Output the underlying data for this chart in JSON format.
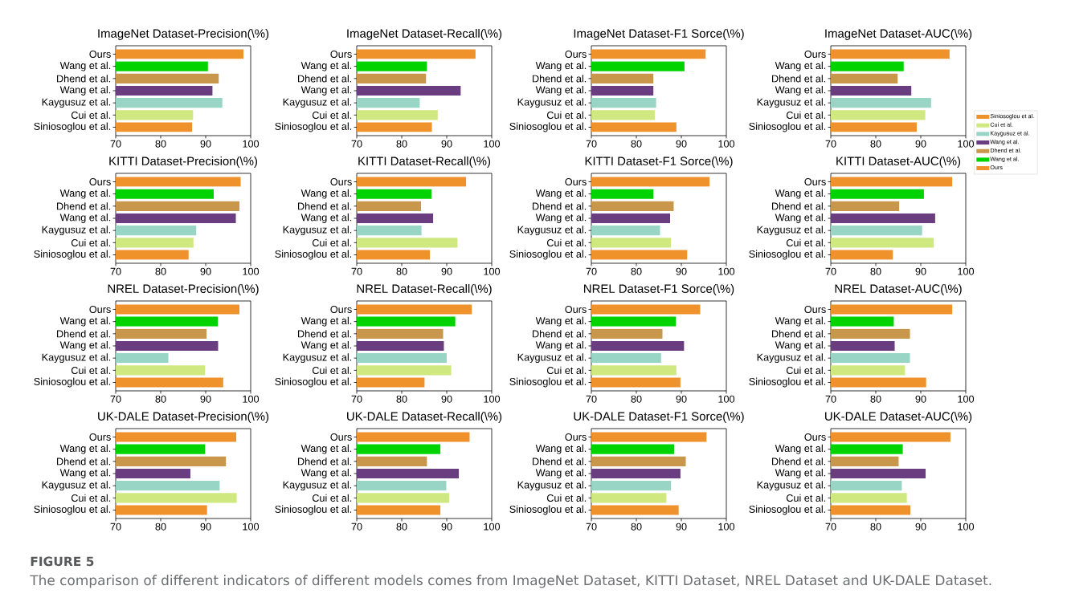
{
  "chart_data": [
    {
      "type": "bar",
      "orientation": "horizontal",
      "title": "ImageNet Dataset-Precision(\\%)",
      "categories": [
        "Ours",
        "Wang et al.",
        "Dhend et al.",
        "Wang et al.",
        "Kaygusuz et al.",
        "Cui et al.",
        "Siniosoglou et al."
      ],
      "values": [
        98.4,
        90.5,
        92.9,
        91.5,
        93.7,
        87.2,
        87.0
      ],
      "colors": [
        "#f0922b",
        "#00d300",
        "#c8974c",
        "#6a3d80",
        "#98d5c5",
        "#cfe880",
        "#f0922b"
      ],
      "xlim": [
        70,
        100
      ],
      "xticks": [
        70,
        80,
        90,
        100
      ]
    },
    {
      "type": "bar",
      "orientation": "horizontal",
      "title": "ImageNet Dataset-Recall(\\%)",
      "categories": [
        "Ours",
        "Wang et al.",
        "Dhend et al.",
        "Wang et al.",
        "Kaygusuz et al.",
        "Cui et al.",
        "Siniosoglou et al."
      ],
      "values": [
        96.4,
        85.6,
        85.4,
        93.1,
        84.0,
        88.0,
        86.7
      ],
      "colors": [
        "#f0922b",
        "#00d300",
        "#c8974c",
        "#6a3d80",
        "#98d5c5",
        "#cfe880",
        "#f0922b"
      ],
      "xlim": [
        70,
        100
      ],
      "xticks": [
        70,
        80,
        90,
        100
      ]
    },
    {
      "type": "bar",
      "orientation": "horizontal",
      "title": "ImageNet Dataset-F1 Sorce(\\%)",
      "categories": [
        "Ours",
        "Wang et al.",
        "Dhend et al.",
        "Wang et al.",
        "Kaygusuz et al.",
        "Cui et al.",
        "Siniosoglou et al."
      ],
      "values": [
        95.4,
        90.7,
        83.8,
        83.8,
        84.4,
        84.1,
        88.9
      ],
      "colors": [
        "#f0922b",
        "#00d300",
        "#c8974c",
        "#6a3d80",
        "#98d5c5",
        "#cfe880",
        "#f0922b"
      ],
      "xlim": [
        70,
        100
      ],
      "xticks": [
        70,
        80,
        90,
        100
      ]
    },
    {
      "type": "bar",
      "orientation": "horizontal",
      "stacked": true,
      "title": "ImageNet Dataset-AUC(\\%)",
      "categories": [
        "Ours",
        "Wang et al.",
        "Dhend et al.",
        "Wang et al.",
        "Kaygusuz et al.",
        "Cui et al.",
        "Siniosoglou et al."
      ],
      "series": [
        {
          "name": "Ours",
          "color": "#f0922b",
          "values": [
            96.4,
            null,
            null,
            null,
            null,
            null,
            null
          ]
        },
        {
          "name": "Wang et al.",
          "color": "#00d300",
          "values": [
            null,
            86.2,
            null,
            null,
            null,
            null,
            null
          ]
        },
        {
          "name": "Dhend et al.",
          "color": "#c8974c",
          "values": [
            null,
            null,
            84.9,
            null,
            null,
            null,
            null
          ]
        },
        {
          "name": "Wang et al.",
          "color": "#6a3d80",
          "values": [
            null,
            null,
            null,
            87.9,
            null,
            null,
            null
          ]
        },
        {
          "name": "Kaygusuz et al.",
          "color": "#98d5c5",
          "values": [
            null,
            null,
            null,
            null,
            92.3,
            null,
            null
          ]
        },
        {
          "name": "Cui et al.",
          "color": "#cfe880",
          "values": [
            null,
            null,
            null,
            null,
            null,
            91.0,
            null
          ]
        },
        {
          "name": "Siniosoglou et al.",
          "color": "#f0922b",
          "values": [
            null,
            null,
            null,
            null,
            null,
            null,
            89.1
          ]
        }
      ],
      "xlim": [
        70,
        100
      ],
      "xticks": [
        70,
        80,
        90,
        100
      ],
      "legend": "right"
    },
    {
      "type": "bar",
      "orientation": "horizontal",
      "title": "KITTI Dataset-Precision(\\%)",
      "categories": [
        "Ours",
        "Wang et al.",
        "Dhend et al.",
        "Wang et al.",
        "Kaygusuz et al.",
        "Cui et al.",
        "Siniosoglou et al."
      ],
      "values": [
        97.8,
        91.8,
        97.5,
        96.7,
        87.9,
        87.3,
        86.2
      ],
      "colors": [
        "#f0922b",
        "#00d300",
        "#c8974c",
        "#6a3d80",
        "#98d5c5",
        "#cfe880",
        "#f0922b"
      ],
      "xlim": [
        70,
        100
      ],
      "xticks": [
        70,
        80,
        90,
        100
      ]
    },
    {
      "type": "bar",
      "orientation": "horizontal",
      "title": "KITTI Dataset-Recall(\\%)",
      "categories": [
        "Ours",
        "Wang et al.",
        "Dhend et al.",
        "Wang et al.",
        "Kaygusuz et al.",
        "Cui et al.",
        "Siniosoglou et al."
      ],
      "values": [
        94.3,
        86.6,
        84.3,
        87.0,
        84.4,
        92.4,
        86.3
      ],
      "colors": [
        "#f0922b",
        "#00d300",
        "#c8974c",
        "#6a3d80",
        "#98d5c5",
        "#cfe880",
        "#f0922b"
      ],
      "xlim": [
        70,
        100
      ],
      "xticks": [
        70,
        80,
        90,
        100
      ]
    },
    {
      "type": "bar",
      "orientation": "horizontal",
      "title": "KITTI Dataset-F1 Sorce(\\%)",
      "categories": [
        "Ours",
        "Wang et al.",
        "Dhend et al.",
        "Wang et al.",
        "Kaygusuz et al.",
        "Cui et al.",
        "Siniosoglou et al."
      ],
      "values": [
        96.3,
        83.8,
        88.3,
        87.5,
        85.3,
        87.7,
        91.3
      ],
      "colors": [
        "#f0922b",
        "#00d300",
        "#c8974c",
        "#6a3d80",
        "#98d5c5",
        "#cfe880",
        "#f0922b"
      ],
      "xlim": [
        70,
        100
      ],
      "xticks": [
        70,
        80,
        90,
        100
      ]
    },
    {
      "type": "bar",
      "orientation": "horizontal",
      "title": "KITTI Dataset-AUC(\\%)",
      "categories": [
        "Ours",
        "Wang et al.",
        "Dhend et al.",
        "Wang et al.",
        "Kaygusuz et al.",
        "Cui et al.",
        "Siniosoglou et al."
      ],
      "values": [
        97.0,
        90.7,
        85.2,
        93.2,
        90.3,
        92.9,
        83.8
      ],
      "colors": [
        "#f0922b",
        "#00d300",
        "#c8974c",
        "#6a3d80",
        "#98d5c5",
        "#cfe880",
        "#f0922b"
      ],
      "xlim": [
        70,
        100
      ],
      "xticks": [
        70,
        80,
        90,
        100
      ]
    },
    {
      "type": "bar",
      "orientation": "horizontal",
      "title": "NREL Dataset-Precision(\\%)",
      "categories": [
        "Ours",
        "Wang et al.",
        "Dhend et al.",
        "Wang et al.",
        "Kaygusuz et al.",
        "Cui et al.",
        "Siniosoglou et al."
      ],
      "values": [
        97.5,
        92.7,
        90.2,
        92.8,
        81.7,
        89.9,
        93.9
      ],
      "colors": [
        "#f0922b",
        "#00d300",
        "#c8974c",
        "#6a3d80",
        "#98d5c5",
        "#cfe880",
        "#f0922b"
      ],
      "xlim": [
        70,
        100
      ],
      "xticks": [
        70,
        80,
        90,
        100
      ]
    },
    {
      "type": "bar",
      "orientation": "horizontal",
      "title": "NREL Dataset-Recall(\\%)",
      "categories": [
        "Ours",
        "Wang et al.",
        "Dhend et al.",
        "Wang et al.",
        "Kaygusuz et al.",
        "Cui et al.",
        "Siniosoglou et al."
      ],
      "values": [
        95.6,
        91.9,
        89.2,
        89.4,
        90.0,
        91.0,
        85.1
      ],
      "colors": [
        "#f0922b",
        "#00d300",
        "#c8974c",
        "#6a3d80",
        "#98d5c5",
        "#cfe880",
        "#f0922b"
      ],
      "xlim": [
        70,
        100
      ],
      "xticks": [
        70,
        80,
        90,
        100
      ]
    },
    {
      "type": "bar",
      "orientation": "horizontal",
      "title": "NREL Dataset-F1 Sorce(\\%)",
      "categories": [
        "Ours",
        "Wang et al.",
        "Dhend et al.",
        "Wang et al.",
        "Kaygusuz et al.",
        "Cui et al.",
        "Siniosoglou et al."
      ],
      "values": [
        94.2,
        88.8,
        85.8,
        90.6,
        85.5,
        88.9,
        89.8
      ],
      "colors": [
        "#f0922b",
        "#00d300",
        "#c8974c",
        "#6a3d80",
        "#98d5c5",
        "#cfe880",
        "#f0922b"
      ],
      "xlim": [
        70,
        100
      ],
      "xticks": [
        70,
        80,
        90,
        100
      ]
    },
    {
      "type": "bar",
      "orientation": "horizontal",
      "title": "NREL Dataset-AUC(\\%)",
      "categories": [
        "Ours",
        "Wang et al.",
        "Dhend et al.",
        "Wang et al.",
        "Kaygusuz et al.",
        "Cui et al.",
        "Siniosoglou et al."
      ],
      "values": [
        97.0,
        84.0,
        87.6,
        84.2,
        87.6,
        86.5,
        91.2
      ],
      "colors": [
        "#f0922b",
        "#00d300",
        "#c8974c",
        "#6a3d80",
        "#98d5c5",
        "#cfe880",
        "#f0922b"
      ],
      "xlim": [
        70,
        100
      ],
      "xticks": [
        70,
        80,
        90,
        100
      ]
    },
    {
      "type": "bar",
      "orientation": "horizontal",
      "title": "UK-DALE Dataset-Precision(\\%)",
      "categories": [
        "Ours",
        "Wang et al.",
        "Dhend et al.",
        "Wang et al.",
        "Kaygusuz et al.",
        "Cui et al.",
        "Siniosoglou et al."
      ],
      "values": [
        96.8,
        89.9,
        94.5,
        86.6,
        93.1,
        96.9,
        90.3
      ],
      "colors": [
        "#f0922b",
        "#00d300",
        "#c8974c",
        "#6a3d80",
        "#98d5c5",
        "#cfe880",
        "#f0922b"
      ],
      "xlim": [
        70,
        100
      ],
      "xticks": [
        70,
        80,
        90,
        100
      ]
    },
    {
      "type": "bar",
      "orientation": "horizontal",
      "title": "UK-DALE Dataset-Recall(\\%)",
      "categories": [
        "Ours",
        "Wang et al.",
        "Dhend et al.",
        "Wang et al.",
        "Kaygusuz et al.",
        "Cui et al.",
        "Siniosoglou et al."
      ],
      "values": [
        95.1,
        88.6,
        85.6,
        92.7,
        89.9,
        90.6,
        88.6
      ],
      "colors": [
        "#f0922b",
        "#00d300",
        "#c8974c",
        "#6a3d80",
        "#98d5c5",
        "#cfe880",
        "#f0922b"
      ],
      "xlim": [
        70,
        100
      ],
      "xticks": [
        70,
        80,
        90,
        100
      ]
    },
    {
      "type": "bar",
      "orientation": "horizontal",
      "title": "UK-DALE Dataset-F1 Sorce(\\%)",
      "categories": [
        "Ours",
        "Wang et al.",
        "Dhend et al.",
        "Wang et al.",
        "Kaygusuz et al.",
        "Cui et al.",
        "Siniosoglou et al."
      ],
      "values": [
        95.6,
        88.4,
        91.0,
        89.8,
        87.7,
        86.7,
        89.4
      ],
      "colors": [
        "#f0922b",
        "#00d300",
        "#c8974c",
        "#6a3d80",
        "#98d5c5",
        "#cfe880",
        "#f0922b"
      ],
      "xlim": [
        70,
        100
      ],
      "xticks": [
        70,
        80,
        90,
        100
      ]
    },
    {
      "type": "bar",
      "orientation": "horizontal",
      "title": "UK-DALE Dataset-AUC(\\%)",
      "categories": [
        "Ours",
        "Wang et al.",
        "Dhend et al.",
        "Wang et al.",
        "Kaygusuz et al.",
        "Cui et al.",
        "Siniosoglou et al."
      ],
      "values": [
        96.6,
        86.0,
        85.1,
        91.1,
        85.8,
        86.9,
        87.7
      ],
      "colors": [
        "#f0922b",
        "#00d300",
        "#c8974c",
        "#6a3d80",
        "#98d5c5",
        "#cfe880",
        "#f0922b"
      ],
      "xlim": [
        70,
        100
      ],
      "xticks": [
        70,
        80,
        90,
        100
      ]
    },
    {
      "type": "other",
      "title": "FIGURE 5",
      "annotations": [
        "The comparison of different indicators of different models comes from ImageNet Dataset, KITTI Dataset, NREL Dataset and UK-DALE Dataset."
      ]
    }
  ]
}
